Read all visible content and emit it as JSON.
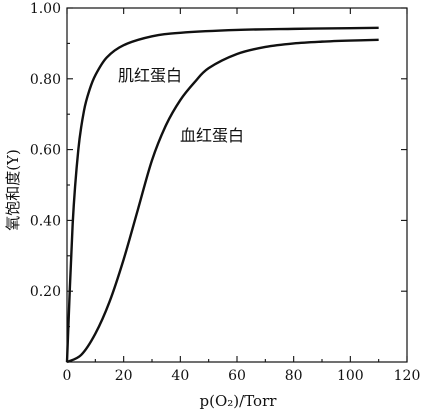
{
  "chart_data": {
    "type": "line",
    "title": "",
    "xlabel": "p(O₂)/Torr",
    "ylabel": "氧饱和度(Y)",
    "xlim": [
      0,
      120
    ],
    "ylim": [
      0,
      1.0
    ],
    "x_ticks": [
      "0",
      "20",
      "40",
      "60",
      "80",
      "100",
      "120"
    ],
    "y_ticks": [
      "0.20",
      "0.40",
      "0.60",
      "0.80",
      "1.00"
    ],
    "grid": false,
    "legend": "none",
    "series": [
      {
        "name": "肌红蛋白",
        "x": [
          0,
          2,
          4,
          6,
          8,
          10,
          14,
          20,
          30,
          40,
          60,
          80,
          100,
          110
        ],
        "y": [
          0,
          0.39,
          0.6,
          0.71,
          0.77,
          0.81,
          0.86,
          0.895,
          0.92,
          0.93,
          0.938,
          0.941,
          0.943,
          0.944
        ]
      },
      {
        "name": "血红蛋白",
        "x": [
          0,
          5,
          10,
          15,
          20,
          25,
          30,
          35,
          40,
          45,
          50,
          60,
          70,
          80,
          90,
          100,
          110
        ],
        "y": [
          0,
          0.02,
          0.08,
          0.17,
          0.29,
          0.43,
          0.57,
          0.67,
          0.74,
          0.79,
          0.83,
          0.87,
          0.89,
          0.9,
          0.905,
          0.908,
          0.91
        ]
      }
    ]
  }
}
